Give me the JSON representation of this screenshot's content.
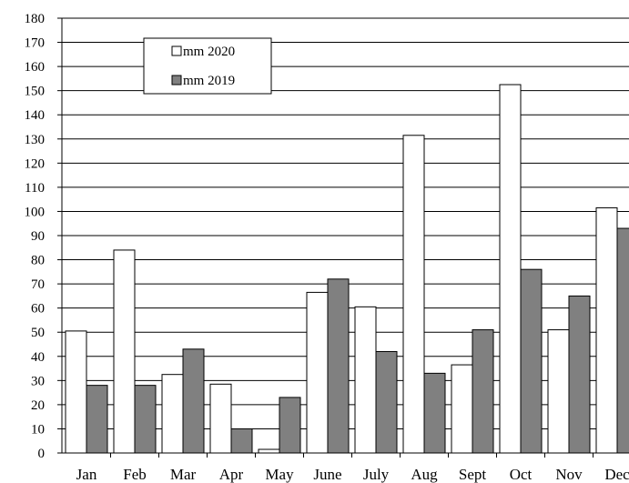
{
  "chart_data": {
    "type": "bar",
    "title": "",
    "xlabel": "",
    "ylabel": "",
    "ylim": [
      0,
      180
    ],
    "yticks": [
      0,
      10,
      20,
      30,
      40,
      50,
      60,
      70,
      80,
      90,
      100,
      110,
      120,
      130,
      140,
      150,
      160,
      170,
      180
    ],
    "grid": true,
    "legend_position": "top-left",
    "categories": [
      "Jan",
      "Feb",
      "Mar",
      "Apr",
      "May",
      "June",
      "July",
      "Aug",
      "Sept",
      "Oct",
      "Nov",
      "Dec"
    ],
    "series": [
      {
        "name": "mm 2020",
        "color": "#ffffff",
        "values": [
          50.5,
          84,
          32.5,
          28.5,
          1.5,
          66.5,
          60.5,
          131.5,
          36.5,
          152.5,
          51,
          101.5
        ]
      },
      {
        "name": "mm 2019",
        "color": "#808080",
        "values": [
          28,
          28,
          43,
          10,
          23,
          72,
          42,
          33,
          51,
          76,
          65,
          93
        ]
      }
    ]
  }
}
